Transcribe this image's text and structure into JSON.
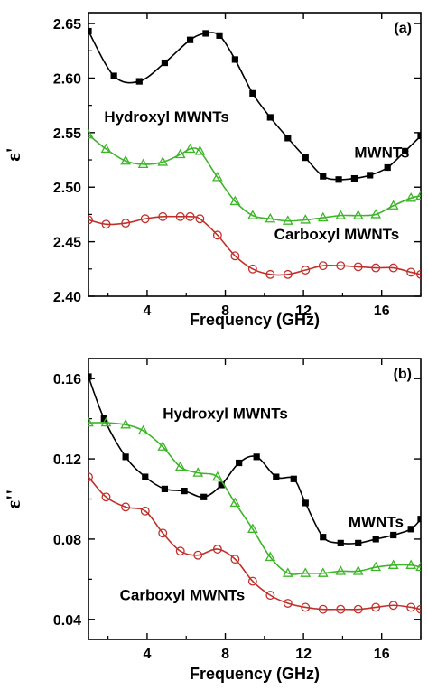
{
  "chart_data": [
    {
      "type": "line",
      "panel_label": "(a)",
      "xlabel": "Frequency (GHz)",
      "ylabel": "ε'",
      "xlim": [
        1,
        18
      ],
      "ylim": [
        2.4,
        2.66
      ],
      "xticks": [
        4,
        8,
        12,
        16
      ],
      "yticks": [
        2.4,
        2.45,
        2.5,
        2.55,
        2.6,
        2.65
      ],
      "ytick_labels": [
        "2.40",
        "2.45",
        "2.50",
        "2.55",
        "2.60",
        "2.65"
      ],
      "series": [
        {
          "name": "MWNTs",
          "marker": "filled-square",
          "line_color": "#000000",
          "marker_color": "#000000",
          "label_at": [
            14.6,
            2.527
          ],
          "x": [
            1.0,
            2.3,
            3.6,
            4.9,
            6.2,
            7.0,
            7.7,
            8.5,
            9.4,
            10.3,
            11.2,
            12.1,
            13.0,
            13.8,
            14.6,
            15.4,
            16.3,
            17.2,
            18.0
          ],
          "y": [
            2.643,
            2.602,
            2.597,
            2.614,
            2.635,
            2.641,
            2.639,
            2.617,
            2.586,
            2.564,
            2.545,
            2.527,
            2.51,
            2.507,
            2.508,
            2.511,
            2.518,
            2.533,
            2.547
          ]
        },
        {
          "name": "Hydroxyl MWNTs",
          "marker": "open-triangle",
          "line_color": "#3cb528",
          "marker_color": "#3cb528",
          "label_at": [
            1.8,
            2.56
          ],
          "x": [
            1.0,
            1.9,
            2.9,
            3.8,
            4.8,
            5.7,
            6.2,
            6.7,
            7.6,
            8.5,
            9.4,
            10.3,
            11.2,
            12.1,
            13.0,
            13.9,
            14.8,
            15.7,
            16.6,
            17.5,
            18.0
          ],
          "y": [
            2.548,
            2.535,
            2.524,
            2.521,
            2.523,
            2.53,
            2.535,
            2.533,
            2.509,
            2.487,
            2.474,
            2.471,
            2.469,
            2.47,
            2.472,
            2.474,
            2.474,
            2.475,
            2.483,
            2.49,
            2.492
          ]
        },
        {
          "name": "Carboxyl MWNTs",
          "marker": "open-circle",
          "line_color": "#c0302b",
          "marker_color": "#c0302b",
          "label_at": [
            10.5,
            2.452
          ],
          "x": [
            1.0,
            1.9,
            2.9,
            3.9,
            4.8,
            5.7,
            6.2,
            6.7,
            7.6,
            8.5,
            9.4,
            10.3,
            11.2,
            12.1,
            13.0,
            13.9,
            14.8,
            15.7,
            16.6,
            17.5,
            18.0
          ],
          "y": [
            2.47,
            2.466,
            2.467,
            2.471,
            2.473,
            2.473,
            2.473,
            2.471,
            2.456,
            2.437,
            2.425,
            2.42,
            2.42,
            2.424,
            2.428,
            2.428,
            2.427,
            2.426,
            2.426,
            2.422,
            2.42
          ]
        }
      ]
    },
    {
      "type": "line",
      "panel_label": "(b)",
      "xlabel": "Frequency (GHz)",
      "ylabel": "ε''",
      "xlim": [
        1,
        18
      ],
      "ylim": [
        0.03,
        0.17
      ],
      "xticks": [
        4,
        8,
        12,
        16
      ],
      "yticks": [
        0.04,
        0.08,
        0.12,
        0.16
      ],
      "ytick_labels": [
        "0.04",
        "0.08",
        "0.12",
        "0.16"
      ],
      "series": [
        {
          "name": "MWNTs",
          "marker": "filled-square",
          "line_color": "#000000",
          "marker_color": "#000000",
          "label_at": [
            14.3,
            0.086
          ],
          "x": [
            1.0,
            1.8,
            2.9,
            3.9,
            4.9,
            5.9,
            6.9,
            7.8,
            8.7,
            9.6,
            10.6,
            11.5,
            12.1,
            13.0,
            13.9,
            14.8,
            15.7,
            16.6,
            17.5,
            18.0
          ],
          "y": [
            0.161,
            0.14,
            0.121,
            0.111,
            0.105,
            0.104,
            0.101,
            0.107,
            0.118,
            0.121,
            0.111,
            0.11,
            0.098,
            0.081,
            0.078,
            0.078,
            0.08,
            0.082,
            0.085,
            0.09
          ]
        },
        {
          "name": "Hydroxyl MWNTs",
          "marker": "open-triangle",
          "line_color": "#3cb528",
          "marker_color": "#3cb528",
          "label_at": [
            4.8,
            0.14
          ],
          "x": [
            1.0,
            1.9,
            2.9,
            3.8,
            4.8,
            5.7,
            6.6,
            7.6,
            8.5,
            9.4,
            10.3,
            11.2,
            12.1,
            13.0,
            13.9,
            14.8,
            15.7,
            16.6,
            17.5,
            18.0
          ],
          "y": [
            0.138,
            0.138,
            0.137,
            0.134,
            0.126,
            0.116,
            0.113,
            0.111,
            0.098,
            0.085,
            0.071,
            0.063,
            0.063,
            0.063,
            0.064,
            0.064,
            0.066,
            0.067,
            0.067,
            0.066
          ]
        },
        {
          "name": "Carboxyl MWNTs",
          "marker": "open-circle",
          "line_color": "#c0302b",
          "marker_color": "#c0302b",
          "label_at": [
            2.6,
            0.0495
          ],
          "x": [
            1.0,
            1.9,
            2.9,
            3.9,
            4.8,
            5.7,
            6.6,
            7.6,
            8.5,
            9.4,
            10.3,
            11.2,
            12.1,
            13.0,
            13.9,
            14.8,
            15.7,
            16.6,
            17.5,
            18.0
          ],
          "y": [
            0.111,
            0.101,
            0.096,
            0.094,
            0.083,
            0.074,
            0.072,
            0.075,
            0.07,
            0.059,
            0.052,
            0.048,
            0.046,
            0.045,
            0.045,
            0.045,
            0.046,
            0.047,
            0.046,
            0.045
          ]
        }
      ]
    }
  ]
}
